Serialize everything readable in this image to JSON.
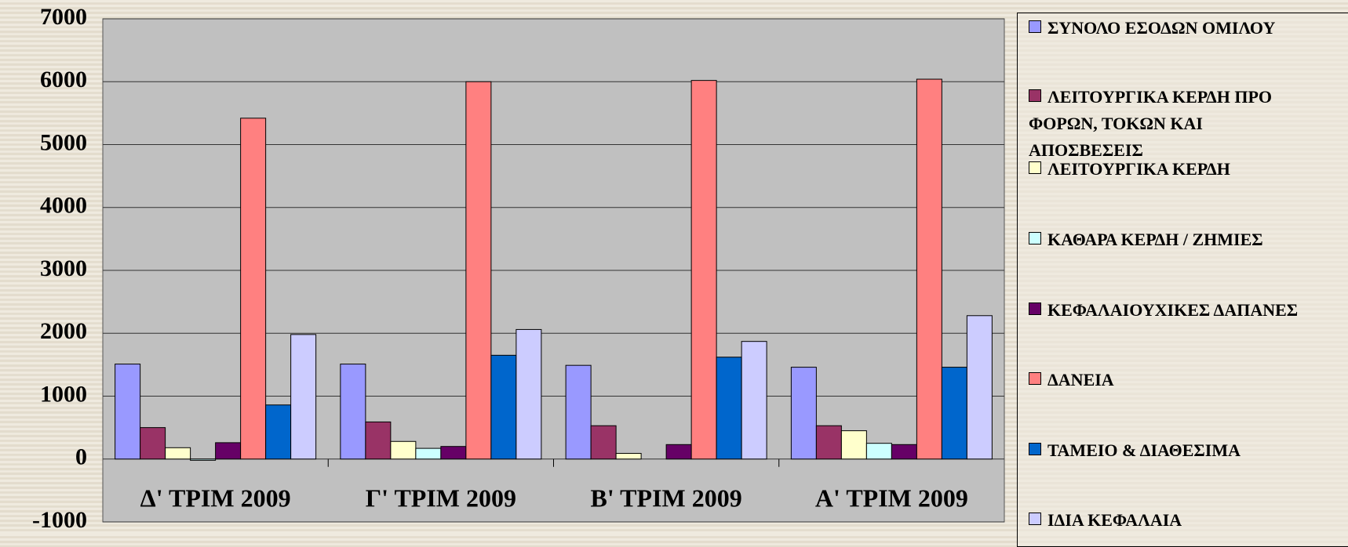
{
  "chart_data": {
    "type": "bar",
    "categories": [
      "Δ' ΤΡΙΜ 2009",
      "Γ' ΤΡΙΜ 2009",
      "Β' ΤΡΙΜ 2009",
      "Α' ΤΡΙΜ 2009"
    ],
    "series": [
      {
        "name": "ΣΥΝΟΛΟ ΕΣΟΔΩΝ ΟΜΙΛΟΥ",
        "color": "#9999ff",
        "values": [
          1510,
          1510,
          1490,
          1460
        ]
      },
      {
        "name": "ΛΕΙΤΟΥΡΓΙΚΑ ΚΕΡΔΗ ΠΡΟ ΦΟΡΩΝ, ΤΟΚΩΝ ΚΑΙ ΑΠΟΣΒΕΣΕΙΣ",
        "color": "#993366",
        "values": [
          500,
          590,
          530,
          530
        ]
      },
      {
        "name": "ΛΕΙΤΟΥΡΓΙΚΑ ΚΕΡΔΗ",
        "color": "#ffffcc",
        "values": [
          180,
          280,
          90,
          450
        ]
      },
      {
        "name": "ΚΑΘΑΡΑ ΚΕΡΔΗ / ΖΗΜΙΕΣ",
        "color": "#ccffff",
        "values": [
          -20,
          170,
          0,
          250
        ]
      },
      {
        "name": "ΚΕΦΑΛΑΙΟΥΧΙΚΕΣ ΔΑΠΑΝΕΣ",
        "color": "#660066",
        "values": [
          260,
          200,
          230,
          230
        ]
      },
      {
        "name": "ΔΑΝΕΙΑ",
        "color": "#ff8080",
        "values": [
          5420,
          6000,
          6020,
          6040
        ]
      },
      {
        "name": "ΤΑΜΕΙΟ & ΔΙΑΘΕΣΙΜΑ",
        "color": "#0066cc",
        "values": [
          860,
          1650,
          1620,
          1460
        ]
      },
      {
        "name": "ΙΔΙΑ ΚΕΦΑΛΑΙΑ",
        "color": "#ccccff",
        "values": [
          1980,
          2060,
          1870,
          2280
        ]
      }
    ],
    "ylim": [
      -1000,
      7000
    ],
    "yticks": [
      -1000,
      0,
      1000,
      2000,
      3000,
      4000,
      5000,
      6000,
      7000
    ],
    "grid": true
  }
}
